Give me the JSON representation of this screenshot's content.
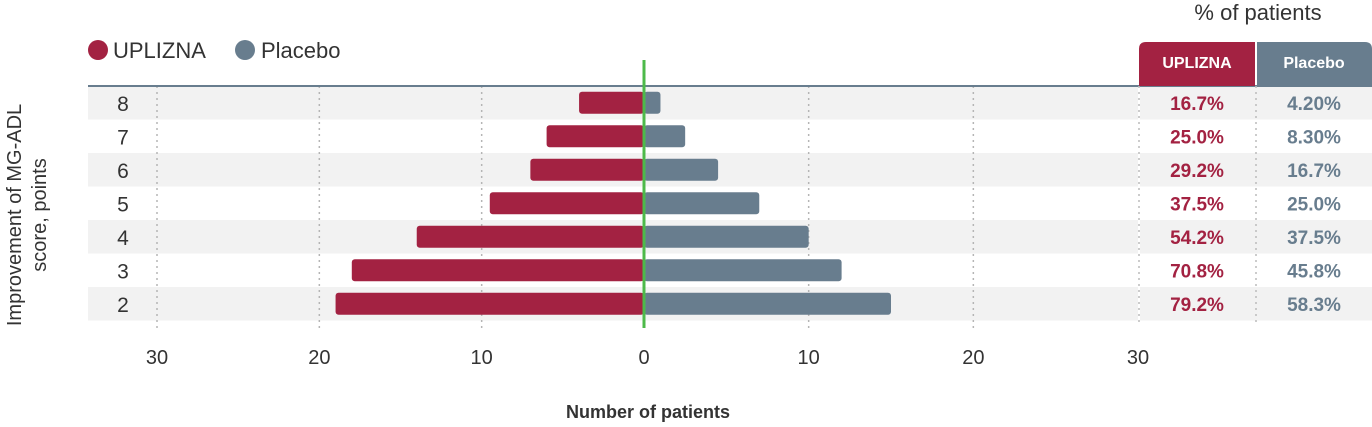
{
  "chart_data": {
    "type": "bar",
    "title": "",
    "xlabel": "Number of patients",
    "ylabel_lines": [
      "Improvement of MG-ADL",
      "score, points"
    ],
    "categories": [
      "8",
      "7",
      "6",
      "5",
      "4",
      "3",
      "2"
    ],
    "x_ticks": [
      "30",
      "20",
      "10",
      "0",
      "10",
      "20",
      "30"
    ],
    "xlim": [
      -30,
      30
    ],
    "grid": true,
    "legend_position": "top-left",
    "series": [
      {
        "name": "UPLIZNA",
        "color": "#A32242",
        "direction": "left",
        "values": [
          4,
          6,
          7,
          9.5,
          14,
          18,
          19
        ],
        "percents": [
          "16.7%",
          "25.0%",
          "29.2%",
          "37.5%",
          "54.2%",
          "70.8%",
          "79.2%"
        ]
      },
      {
        "name": "Placebo",
        "color": "#687D8E",
        "direction": "right",
        "values": [
          1,
          2.5,
          4.5,
          7,
          10,
          12,
          15
        ],
        "percents": [
          "4.20%",
          "8.30%",
          "16.7%",
          "25.0%",
          "37.5%",
          "45.8%",
          "58.3%"
        ]
      }
    ],
    "table_title": "% of patients",
    "table_headers": [
      "UPLIZNA",
      "Placebo"
    ]
  },
  "colors": {
    "uplizna": "#A32242",
    "placebo": "#687D8E",
    "zero_line": "#4DBA4A",
    "row_band": "#F2F2F2"
  }
}
